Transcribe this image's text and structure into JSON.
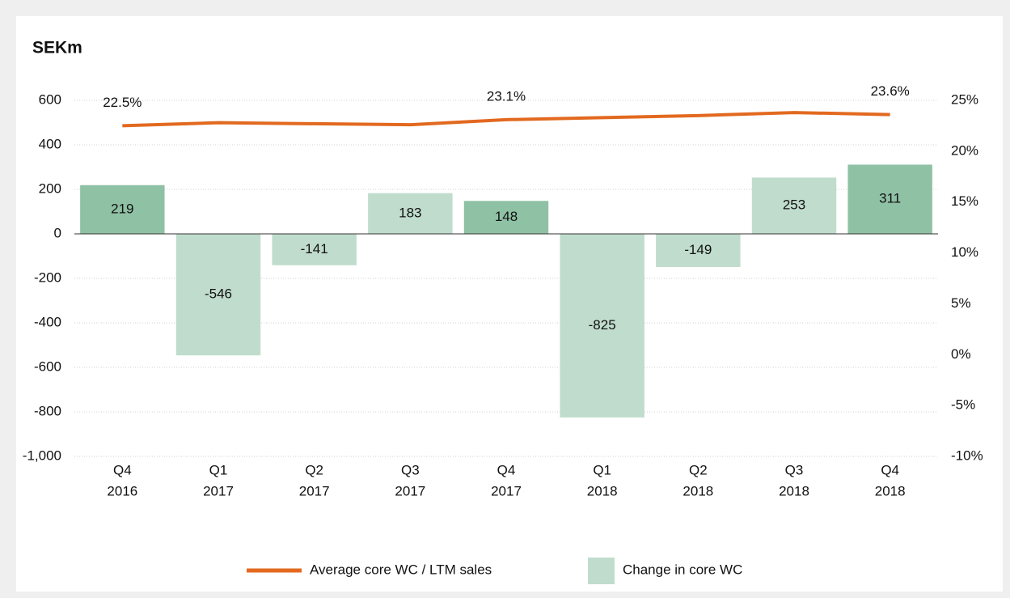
{
  "chart_data": {
    "type": "bar-line",
    "title": "SEKm",
    "categories": [
      [
        "Q4",
        "2016"
      ],
      [
        "Q1",
        "2017"
      ],
      [
        "Q2",
        "2017"
      ],
      [
        "Q3",
        "2017"
      ],
      [
        "Q4",
        "2017"
      ],
      [
        "Q1",
        "2018"
      ],
      [
        "Q2",
        "2018"
      ],
      [
        "Q3",
        "2018"
      ],
      [
        "Q4",
        "2018"
      ]
    ],
    "series": [
      {
        "name": "Average core WC / LTM sales",
        "type": "line",
        "axis": "y2",
        "color": "#e2691f",
        "values": [
          22.5,
          22.8,
          22.7,
          22.6,
          23.1,
          23.3,
          23.5,
          23.8,
          23.6
        ],
        "value_labels": [
          "22.5%",
          null,
          null,
          null,
          "23.1%",
          null,
          null,
          null,
          "23.6%"
        ]
      },
      {
        "name": "Change in core WC",
        "type": "bar",
        "color": "#c0dccd",
        "colors": [
          "#8fc1a5",
          "#c0dccd",
          "#c0dccd",
          "#c0dccd",
          "#8fc1a5",
          "#c0dccd",
          "#c0dccd",
          "#c0dccd",
          "#8fc1a5"
        ],
        "values": [
          219,
          -546,
          -141,
          183,
          148,
          -825,
          -149,
          253,
          311
        ]
      }
    ],
    "ylim": [
      -1000,
      600
    ],
    "yticks": [
      {
        "value": -1000,
        "label": "-1,000"
      },
      -800,
      -600,
      -400,
      -200,
      0,
      200,
      400,
      600
    ],
    "y2lim": [
      -10,
      25
    ],
    "y2ticks": [
      {
        "value": -10,
        "label": "-10%"
      },
      {
        "value": -5,
        "label": "-5%"
      },
      {
        "value": 0,
        "label": "0%"
      },
      {
        "value": 5,
        "label": "5%"
      },
      {
        "value": 10,
        "label": "10%"
      },
      {
        "value": 15,
        "label": "15%"
      },
      {
        "value": 20,
        "label": "20%"
      },
      {
        "value": 25,
        "label": "25%"
      }
    ],
    "grid": true,
    "legend": "bottom"
  }
}
